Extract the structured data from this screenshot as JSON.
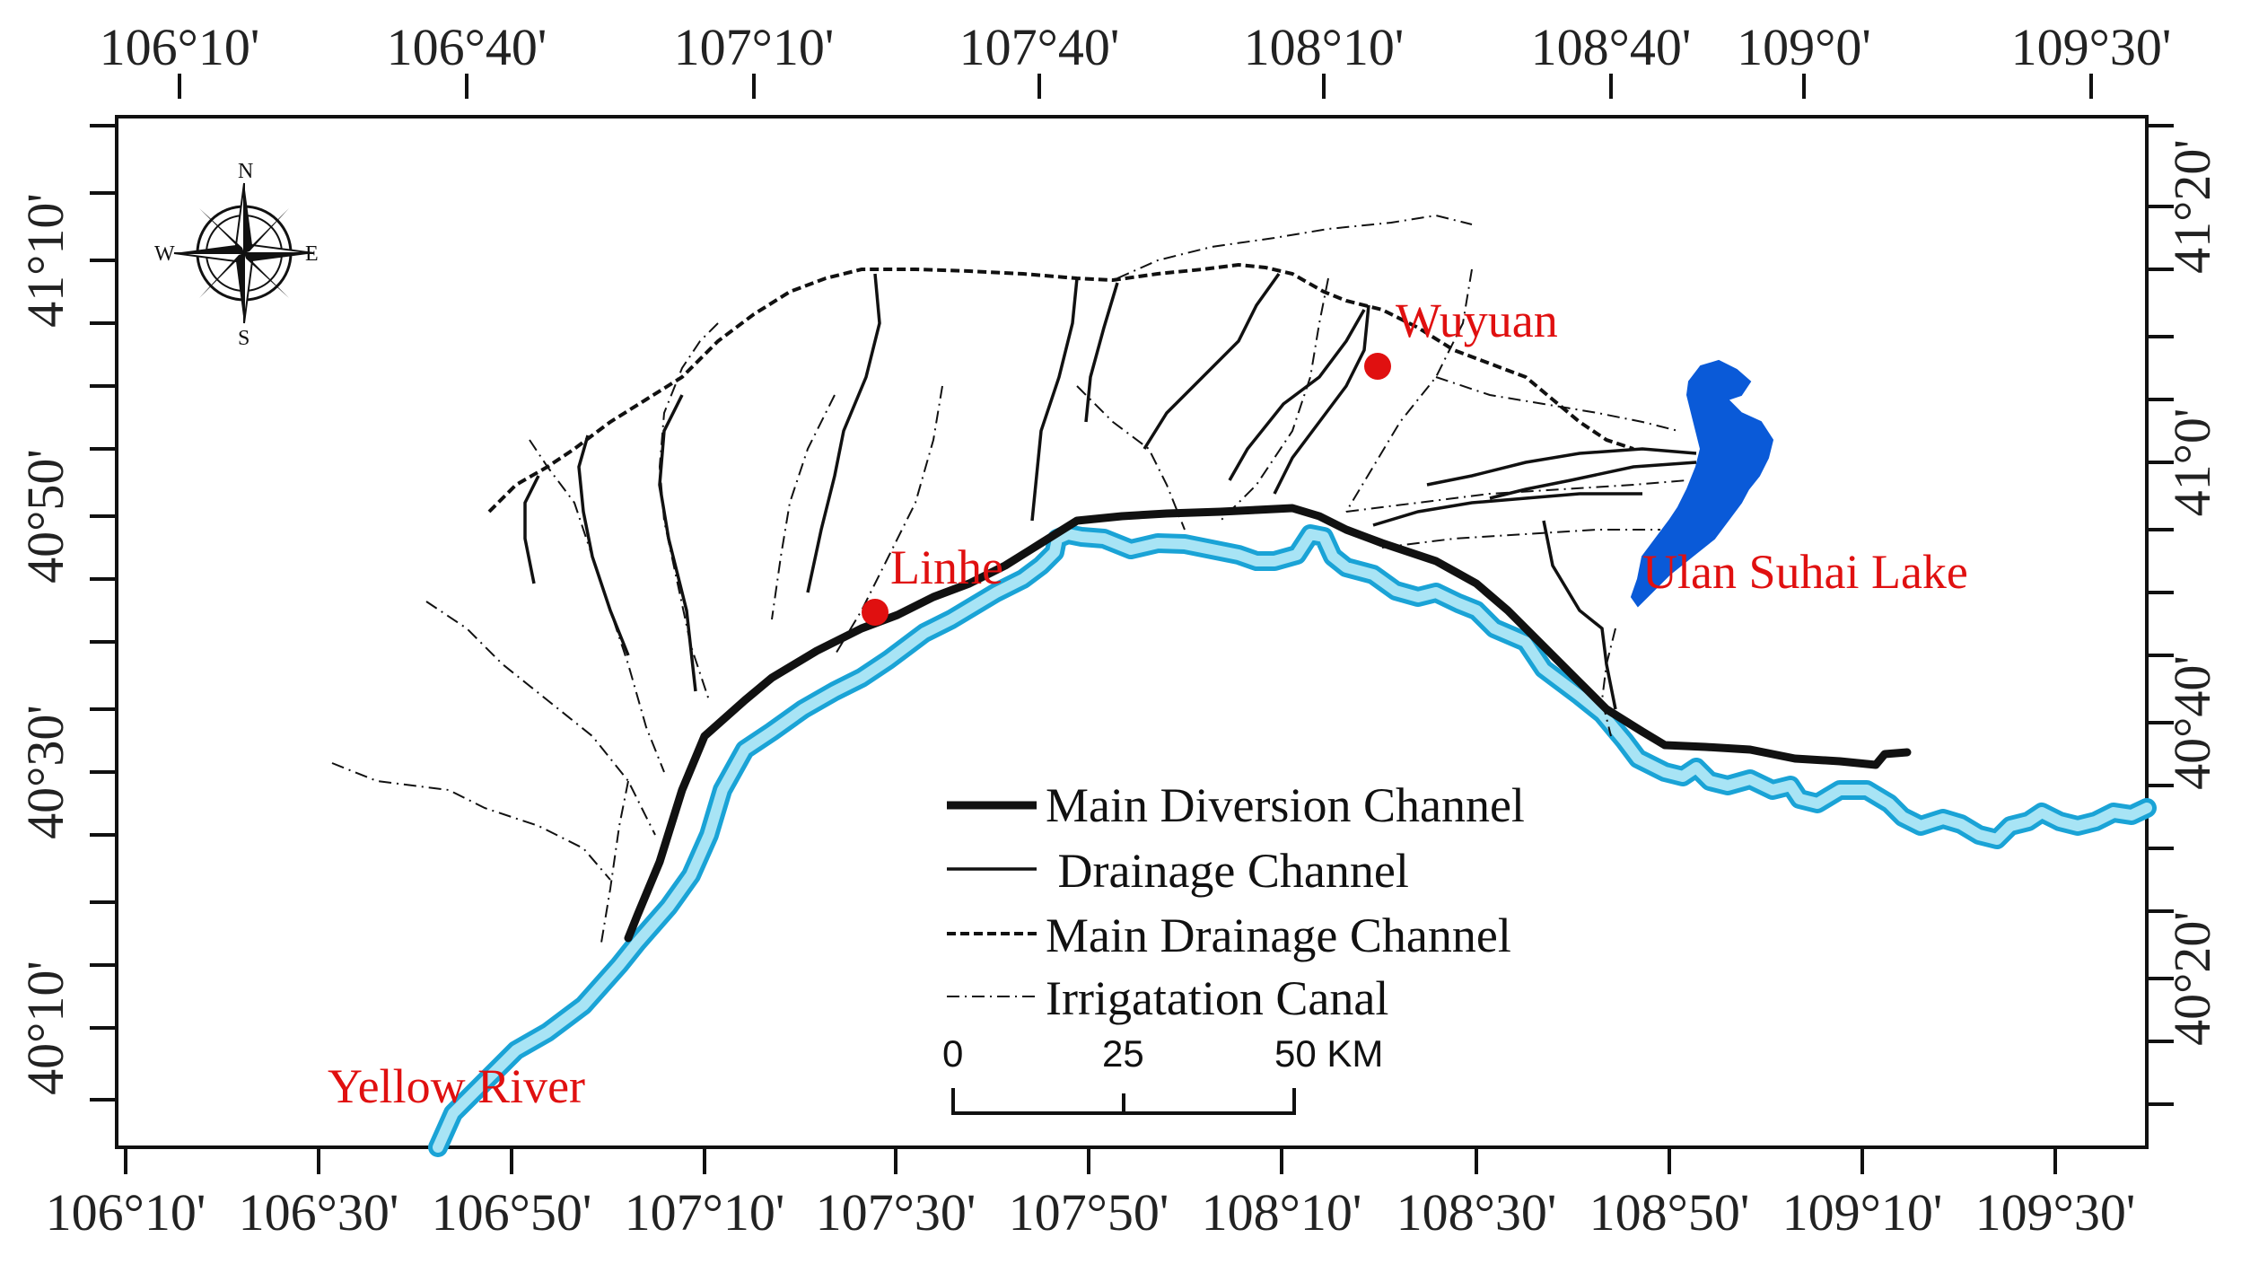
{
  "axes": {
    "top_ticks": [
      "106°10'",
      "106°40'",
      "107°10'",
      "107°40'",
      "108°10'",
      "108°40'",
      "109°0'",
      "109°30'"
    ],
    "bottom_ticks": [
      "106°10'",
      "106°30'",
      "106°50'",
      "107°10'",
      "107°30'",
      "107°50'",
      "108°10'",
      "108°30'",
      "108°50'",
      "109°10'",
      "109°30'"
    ],
    "left_ticks": [
      "41°10'",
      "40°50'",
      "40°30'",
      "40°10'"
    ],
    "right_ticks": [
      "41°20'",
      "41°0'",
      "40°40'",
      "40°20'"
    ]
  },
  "places": {
    "wuyuan": "Wuyuan",
    "linhe": "Linhe",
    "lake": "Ulan Suhai Lake",
    "river": "Yellow River"
  },
  "legend": {
    "main_diversion": "Main Diversion Channel",
    "drainage": " Drainage Channel",
    "main_drainage": "Main Drainage Channel",
    "irrigation": "Irrigatation Canal"
  },
  "scale_bar": {
    "start": "0",
    "mid": "25",
    "end": "50 KM"
  },
  "compass": {
    "n": "N",
    "s": "S",
    "e": "E",
    "w": "W"
  },
  "colors": {
    "river_outline": "#1aa3d6",
    "river_fill": "#a8e4f5",
    "lake": "#0a5ad8",
    "city": "#e01010",
    "label_red": "#e01010",
    "channel": "#111111"
  }
}
